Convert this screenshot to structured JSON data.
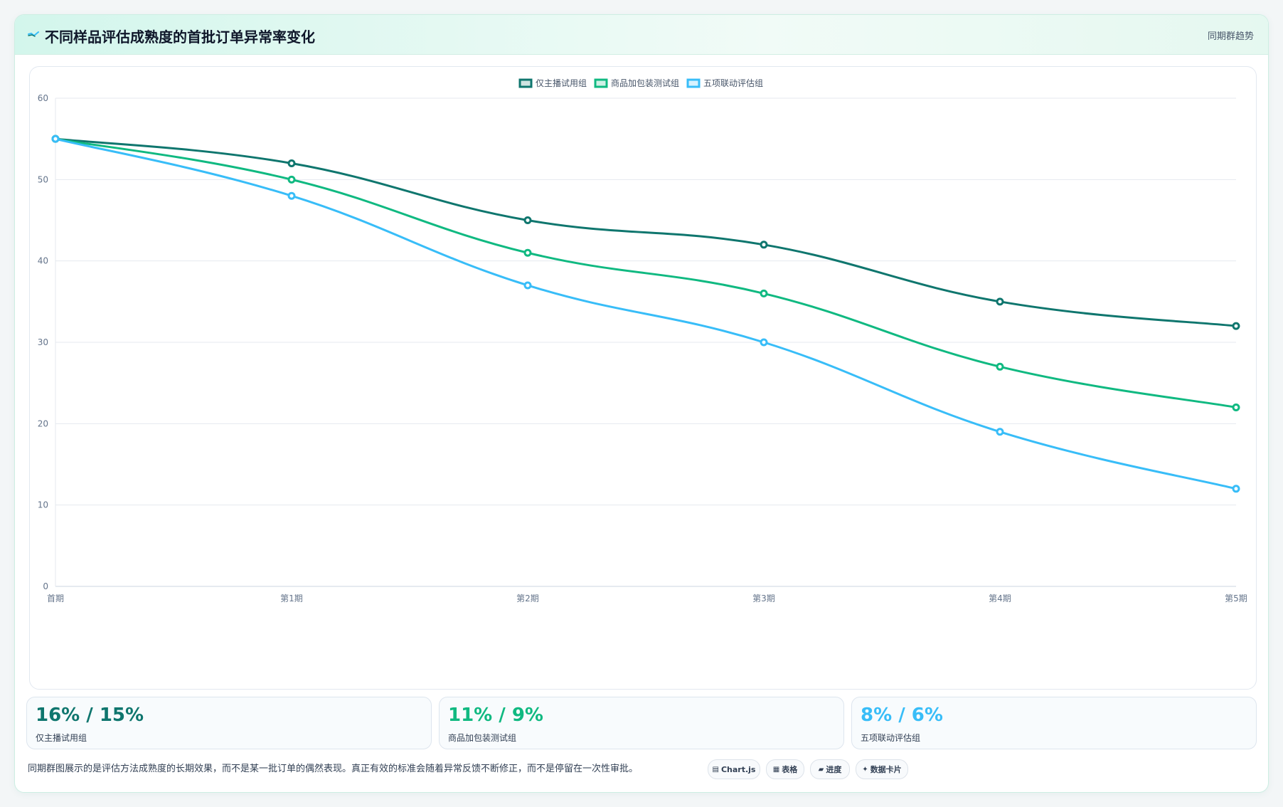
{
  "header": {
    "title": "不同样品评估成熟度的首批订单异常率变化",
    "right_label": "同期群趋势"
  },
  "chart_data": {
    "type": "line",
    "categories": [
      "首期",
      "第1期",
      "第2期",
      "第3期",
      "第4期",
      "第5期"
    ],
    "series": [
      {
        "name": "仅主播试用组",
        "color": "#0f766e",
        "values": [
          55,
          52,
          45,
          42,
          35,
          32
        ]
      },
      {
        "name": "商品加包装测试组",
        "color": "#10b981",
        "values": [
          55,
          50,
          41,
          36,
          27,
          22
        ]
      },
      {
        "name": "五项联动评估组",
        "color": "#38bdf8",
        "values": [
          55,
          48,
          37,
          30,
          19,
          12
        ]
      }
    ],
    "ylim": [
      0,
      60
    ],
    "yticks": [
      0,
      10,
      20,
      30,
      40,
      50,
      60
    ],
    "grid": true,
    "legend": "top-center",
    "title": "",
    "xlabel": "",
    "ylabel": ""
  },
  "stats": [
    {
      "value": "16% / 15%",
      "label": "仅主播试用组",
      "color": "#0f766e"
    },
    {
      "value": "11% / 9%",
      "label": "商品加包装测试组",
      "color": "#10b981"
    },
    {
      "value": "8% / 6%",
      "label": "五项联动评估组",
      "color": "#38bdf8"
    }
  ],
  "footnote": "同期群图展示的是评估方法成熟度的长期效果，而不是某一批订单的偶然表现。真正有效的标准会随着异常反馈不断修正，而不是停留在一次性审批。",
  "tags": [
    {
      "icon": "chart-icon",
      "glyph": "▤",
      "label": "Chart.js"
    },
    {
      "icon": "table-icon",
      "glyph": "▦",
      "label": "表格"
    },
    {
      "icon": "progress-icon",
      "glyph": "▰",
      "label": "进度"
    },
    {
      "icon": "sparkle-icon",
      "glyph": "✦",
      "label": "数据卡片"
    }
  ]
}
